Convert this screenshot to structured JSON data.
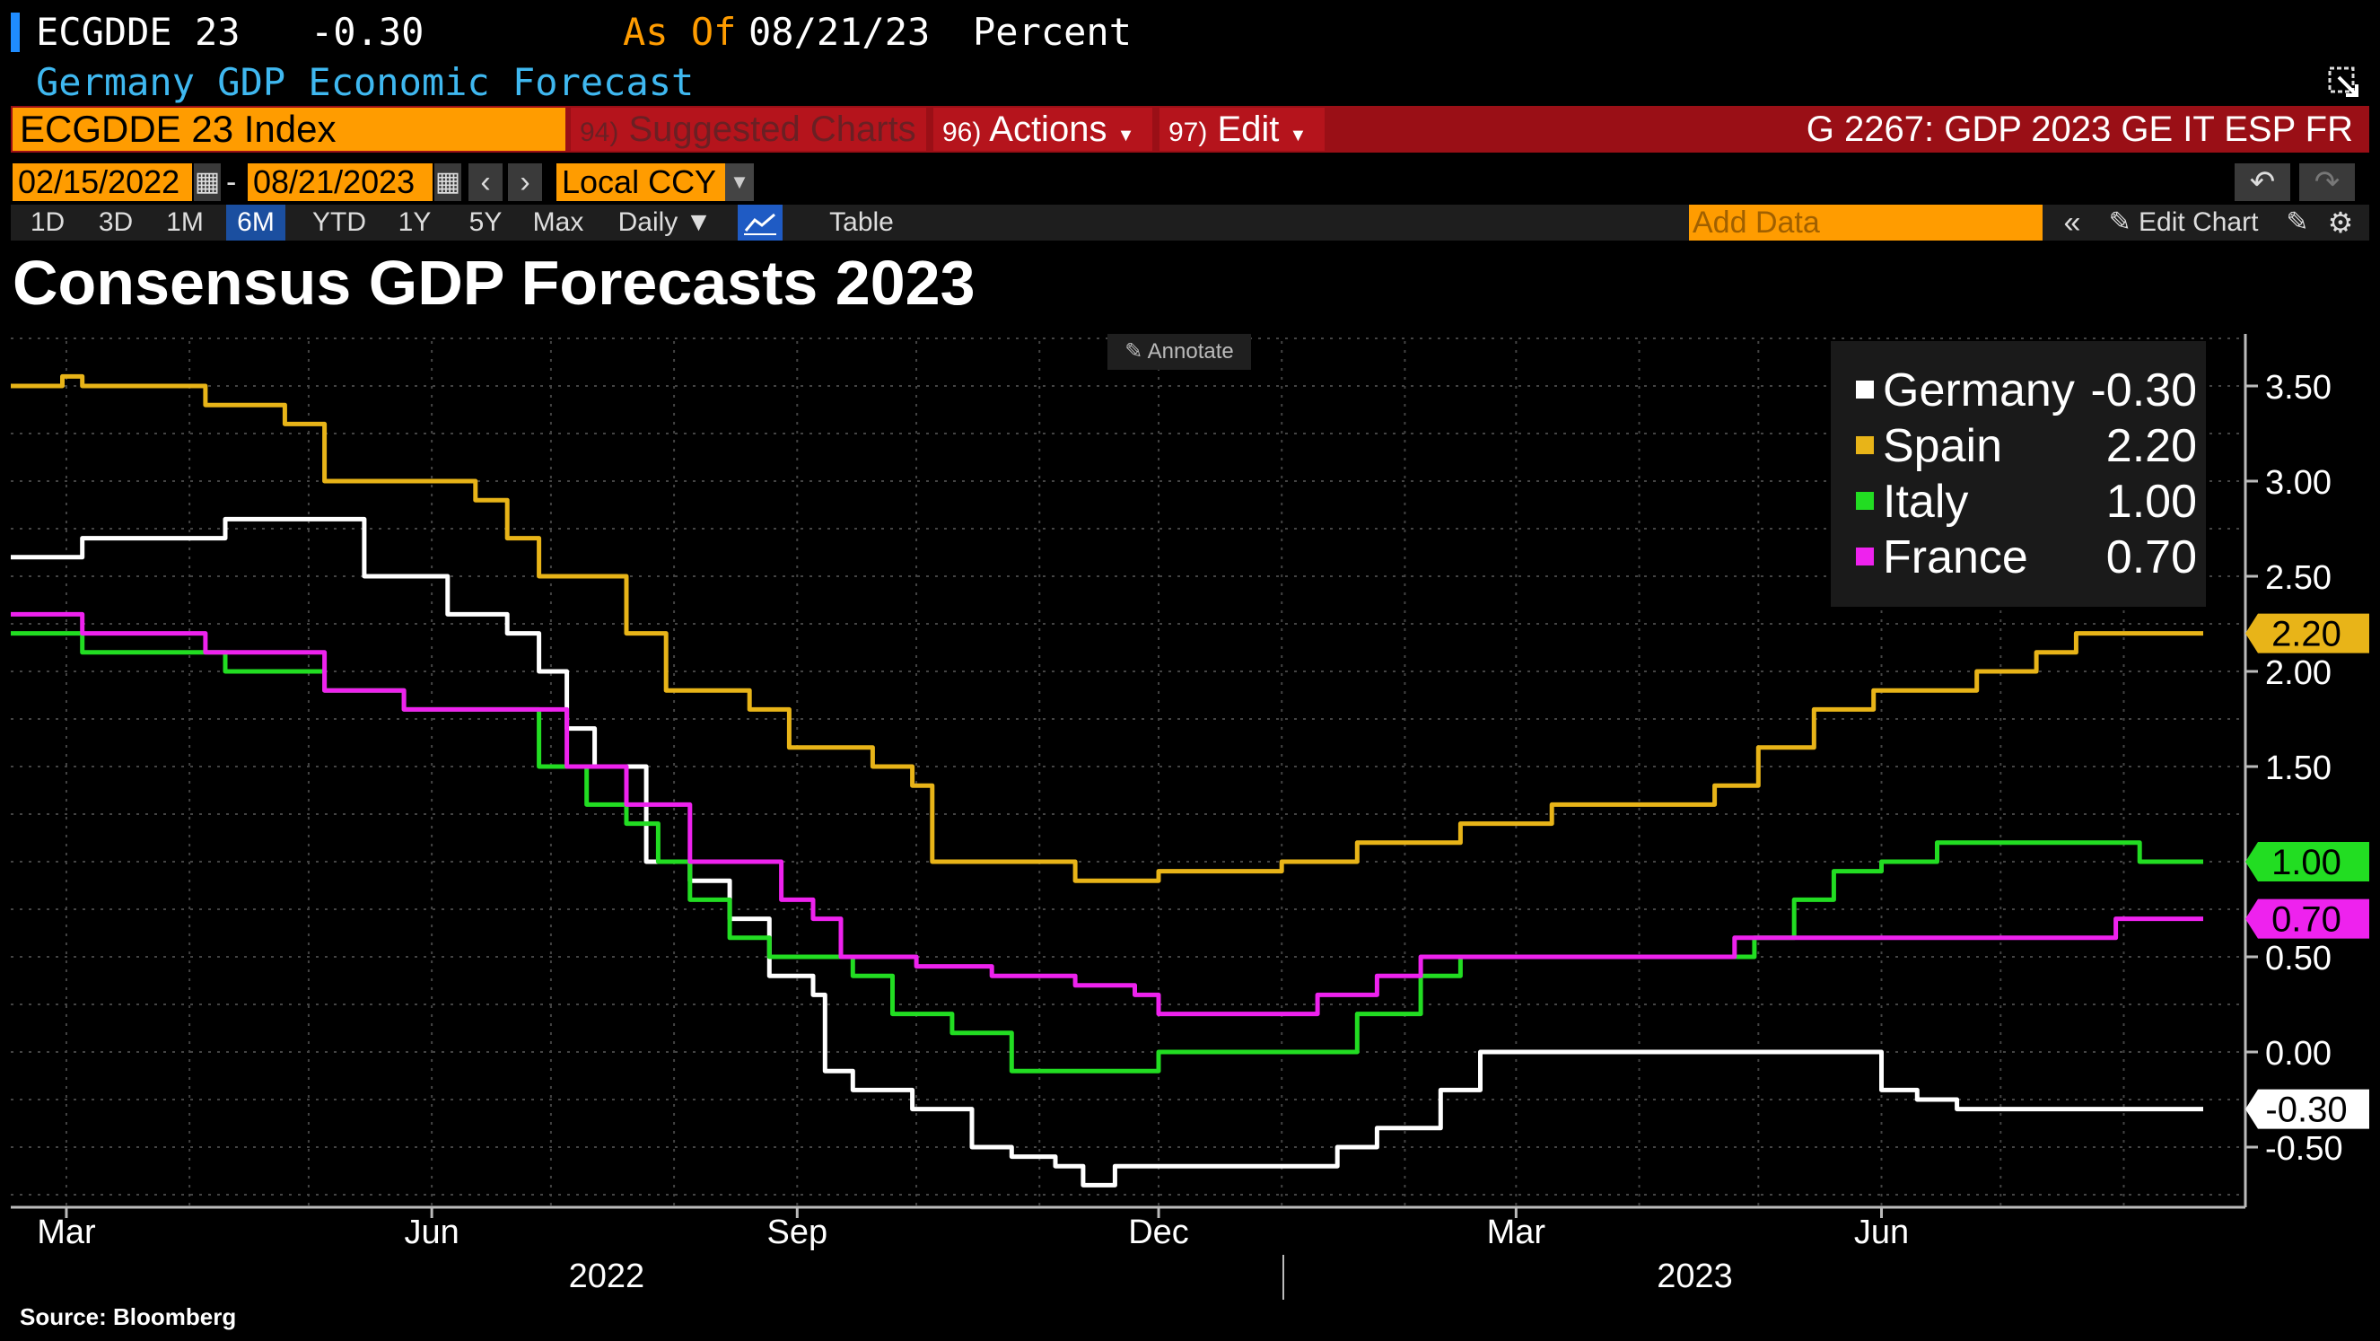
{
  "header": {
    "ticker": "ECGDDE 23",
    "value": "-0.30",
    "as_of_label": "As Of",
    "as_of_date": "08/21/23",
    "unit": "Percent",
    "subtitle": "Germany GDP Economic Forecast"
  },
  "toolbar": {
    "security": "ECGDDE 23 Index",
    "suggested_num": "94)",
    "suggested_label": "Suggested Charts",
    "actions_num": "96)",
    "actions_label": "Actions",
    "edit_num": "97)",
    "edit_label": "Edit",
    "right_code": "G 2267: GDP 2023 GE IT ESP FR",
    "start_date": "02/15/2022",
    "date_sep": "-",
    "end_date": "08/21/2023",
    "currency": "Local CCY",
    "ranges": [
      "1D",
      "3D",
      "1M",
      "6M",
      "YTD",
      "1Y",
      "5Y",
      "Max"
    ],
    "selected_range": "6M",
    "frequency": "Daily",
    "table_label": "Table",
    "add_data_placeholder": "Add Data",
    "edit_chart_label": "Edit Chart",
    "annotate_label": "Annotate",
    "colors": {
      "orange": "#ff9c00",
      "red": "#9a0f16",
      "blue": "#1b4fa0"
    },
    "icons": [
      "calendar-icon",
      "chevron-left-icon",
      "chevron-right-icon",
      "line-chart-icon",
      "double-chevron-icon",
      "pencil-icon",
      "gear-icon",
      "undo-icon",
      "redo-icon",
      "popout-icon"
    ]
  },
  "source": "Source: Bloomberg",
  "chart_data": {
    "type": "line",
    "title": "Consensus GDP Forecasts 2023",
    "xlabel": "",
    "ylabel": "",
    "x_range": [
      "2022-02-15",
      "2023-08-21"
    ],
    "ylim": [
      -0.8,
      3.8
    ],
    "y_ticks": [
      3.5,
      3.0,
      2.5,
      2.0,
      1.5,
      1.0,
      0.5,
      0.0,
      -0.5
    ],
    "y_tick_labels": [
      "3.50",
      "3.00",
      "2.50",
      "2.00",
      "1.50",
      "1.00",
      "0.50",
      "0.00",
      "-0.50"
    ],
    "x_ticks": [
      {
        "date": "2022-03-01",
        "label": "Mar"
      },
      {
        "date": "2022-06-01",
        "label": "Jun"
      },
      {
        "date": "2022-09-01",
        "label": "Sep"
      },
      {
        "date": "2022-12-01",
        "label": "Dec"
      },
      {
        "date": "2023-03-01",
        "label": "Mar"
      },
      {
        "date": "2023-06-01",
        "label": "Jun"
      }
    ],
    "year_labels": [
      {
        "date": "2022-07-15",
        "label": "2022"
      },
      {
        "date": "2023-04-15",
        "label": "2023"
      }
    ],
    "year_divider": "2023-01-01",
    "grid": true,
    "legend_position": "top-right",
    "series": [
      {
        "name": "Germany",
        "last": "-0.30",
        "color": "#ffffff",
        "label_text_color": "#000000",
        "points": [
          [
            "2022-02-15",
            2.6
          ],
          [
            "2022-03-01",
            2.6
          ],
          [
            "2022-03-05",
            2.7
          ],
          [
            "2022-04-01",
            2.7
          ],
          [
            "2022-04-10",
            2.8
          ],
          [
            "2022-05-10",
            2.8
          ],
          [
            "2022-05-15",
            2.5
          ],
          [
            "2022-06-01",
            2.5
          ],
          [
            "2022-06-05",
            2.3
          ],
          [
            "2022-06-20",
            2.2
          ],
          [
            "2022-06-28",
            2.0
          ],
          [
            "2022-07-05",
            1.7
          ],
          [
            "2022-07-12",
            1.5
          ],
          [
            "2022-07-20",
            1.5
          ],
          [
            "2022-07-25",
            1.0
          ],
          [
            "2022-08-05",
            0.9
          ],
          [
            "2022-08-15",
            0.7
          ],
          [
            "2022-08-25",
            0.4
          ],
          [
            "2022-09-05",
            0.3
          ],
          [
            "2022-09-08",
            -0.1
          ],
          [
            "2022-09-15",
            -0.2
          ],
          [
            "2022-09-30",
            -0.3
          ],
          [
            "2022-10-15",
            -0.5
          ],
          [
            "2022-10-25",
            -0.55
          ],
          [
            "2022-11-05",
            -0.6
          ],
          [
            "2022-11-12",
            -0.7
          ],
          [
            "2022-11-20",
            -0.6
          ],
          [
            "2022-12-01",
            -0.6
          ],
          [
            "2022-12-25",
            -0.6
          ],
          [
            "2023-01-05",
            -0.6
          ],
          [
            "2023-01-15",
            -0.5
          ],
          [
            "2023-01-25",
            -0.4
          ],
          [
            "2023-02-10",
            -0.2
          ],
          [
            "2023-02-20",
            0.0
          ],
          [
            "2023-05-25",
            0.0
          ],
          [
            "2023-06-01",
            -0.2
          ],
          [
            "2023-06-10",
            -0.25
          ],
          [
            "2023-06-20",
            -0.3
          ],
          [
            "2023-08-21",
            -0.3
          ]
        ]
      },
      {
        "name": "Spain",
        "last": "2.20",
        "color": "#e8b418",
        "label_text_color": "#000000",
        "points": [
          [
            "2022-02-15",
            3.5
          ],
          [
            "2022-02-28",
            3.55
          ],
          [
            "2022-03-05",
            3.5
          ],
          [
            "2022-04-01",
            3.5
          ],
          [
            "2022-04-05",
            3.4
          ],
          [
            "2022-04-25",
            3.3
          ],
          [
            "2022-05-05",
            3.0
          ],
          [
            "2022-06-01",
            3.0
          ],
          [
            "2022-06-12",
            2.9
          ],
          [
            "2022-06-20",
            2.7
          ],
          [
            "2022-06-28",
            2.5
          ],
          [
            "2022-07-10",
            2.5
          ],
          [
            "2022-07-20",
            2.2
          ],
          [
            "2022-07-30",
            1.9
          ],
          [
            "2022-08-10",
            1.9
          ],
          [
            "2022-08-20",
            1.8
          ],
          [
            "2022-08-30",
            1.6
          ],
          [
            "2022-09-20",
            1.5
          ],
          [
            "2022-09-30",
            1.4
          ],
          [
            "2022-10-05",
            1.0
          ],
          [
            "2022-11-01",
            1.0
          ],
          [
            "2022-11-10",
            0.9
          ],
          [
            "2022-12-01",
            0.95
          ],
          [
            "2023-01-01",
            1.0
          ],
          [
            "2023-01-20",
            1.1
          ],
          [
            "2023-02-15",
            1.2
          ],
          [
            "2023-03-10",
            1.3
          ],
          [
            "2023-04-10",
            1.3
          ],
          [
            "2023-04-20",
            1.4
          ],
          [
            "2023-05-01",
            1.6
          ],
          [
            "2023-05-15",
            1.8
          ],
          [
            "2023-05-30",
            1.9
          ],
          [
            "2023-06-15",
            1.9
          ],
          [
            "2023-06-25",
            2.0
          ],
          [
            "2023-07-10",
            2.1
          ],
          [
            "2023-07-20",
            2.2
          ],
          [
            "2023-08-21",
            2.2
          ]
        ]
      },
      {
        "name": "Italy",
        "last": "1.00",
        "color": "#22dd22",
        "label_text_color": "#000000",
        "points": [
          [
            "2022-02-15",
            2.2
          ],
          [
            "2022-03-01",
            2.2
          ],
          [
            "2022-03-05",
            2.1
          ],
          [
            "2022-04-01",
            2.1
          ],
          [
            "2022-04-10",
            2.0
          ],
          [
            "2022-05-05",
            1.9
          ],
          [
            "2022-05-25",
            1.8
          ],
          [
            "2022-06-20",
            1.8
          ],
          [
            "2022-06-28",
            1.5
          ],
          [
            "2022-07-10",
            1.3
          ],
          [
            "2022-07-20",
            1.2
          ],
          [
            "2022-07-28",
            1.0
          ],
          [
            "2022-08-05",
            0.8
          ],
          [
            "2022-08-15",
            0.6
          ],
          [
            "2022-08-25",
            0.5
          ],
          [
            "2022-09-15",
            0.4
          ],
          [
            "2022-09-25",
            0.2
          ],
          [
            "2022-10-10",
            0.1
          ],
          [
            "2022-10-25",
            -0.1
          ],
          [
            "2022-11-25",
            -0.1
          ],
          [
            "2022-12-01",
            0.0
          ],
          [
            "2023-01-10",
            0.0
          ],
          [
            "2023-01-20",
            0.2
          ],
          [
            "2023-02-05",
            0.4
          ],
          [
            "2023-02-15",
            0.5
          ],
          [
            "2023-04-20",
            0.5
          ],
          [
            "2023-04-30",
            0.6
          ],
          [
            "2023-05-10",
            0.8
          ],
          [
            "2023-05-20",
            0.95
          ],
          [
            "2023-06-01",
            1.0
          ],
          [
            "2023-06-15",
            1.1
          ],
          [
            "2023-07-30",
            1.1
          ],
          [
            "2023-08-05",
            1.0
          ],
          [
            "2023-08-21",
            1.0
          ]
        ]
      },
      {
        "name": "France",
        "last": "0.70",
        "color": "#ee22ee",
        "label_text_color": "#000000",
        "points": [
          [
            "2022-02-15",
            2.3
          ],
          [
            "2022-03-01",
            2.3
          ],
          [
            "2022-03-05",
            2.2
          ],
          [
            "2022-04-01",
            2.2
          ],
          [
            "2022-04-05",
            2.1
          ],
          [
            "2022-05-05",
            1.9
          ],
          [
            "2022-05-25",
            1.8
          ],
          [
            "2022-06-20",
            1.8
          ],
          [
            "2022-07-05",
            1.5
          ],
          [
            "2022-07-20",
            1.3
          ],
          [
            "2022-08-01",
            1.3
          ],
          [
            "2022-08-05",
            1.0
          ],
          [
            "2022-08-20",
            1.0
          ],
          [
            "2022-08-28",
            0.8
          ],
          [
            "2022-09-05",
            0.7
          ],
          [
            "2022-09-12",
            0.5
          ],
          [
            "2022-09-25",
            0.5
          ],
          [
            "2022-10-01",
            0.45
          ],
          [
            "2022-10-20",
            0.4
          ],
          [
            "2022-11-10",
            0.35
          ],
          [
            "2022-11-25",
            0.3
          ],
          [
            "2022-12-01",
            0.2
          ],
          [
            "2023-01-01",
            0.2
          ],
          [
            "2023-01-10",
            0.3
          ],
          [
            "2023-01-25",
            0.4
          ],
          [
            "2023-02-05",
            0.5
          ],
          [
            "2023-04-15",
            0.5
          ],
          [
            "2023-04-25",
            0.6
          ],
          [
            "2023-07-20",
            0.6
          ],
          [
            "2023-07-30",
            0.7
          ],
          [
            "2023-08-21",
            0.7
          ]
        ]
      }
    ]
  }
}
